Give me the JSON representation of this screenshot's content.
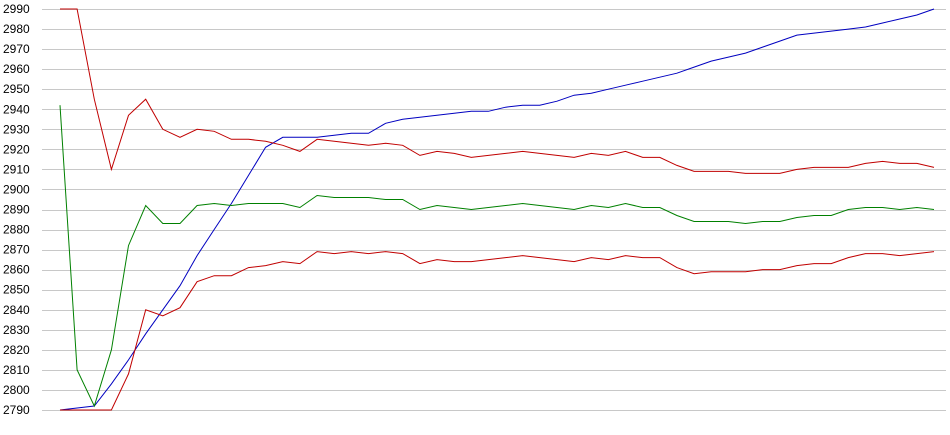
{
  "chart_data": {
    "type": "line",
    "title": "",
    "xlabel": "",
    "ylabel": "",
    "ylim": [
      2790,
      2990
    ],
    "yticks": [
      2790,
      2800,
      2810,
      2820,
      2830,
      2840,
      2850,
      2860,
      2870,
      2880,
      2890,
      2900,
      2910,
      2920,
      2930,
      2940,
      2950,
      2960,
      2970,
      2980,
      2990
    ],
    "x_count": 52,
    "grid": "horizontal",
    "legend": "none",
    "colors": {
      "grid": "#c8c8c8",
      "blue": "#0000c0",
      "green": "#008000",
      "red": "#c00000"
    },
    "series": [
      {
        "color": "#0000c0",
        "values": [
          2790,
          2791,
          2792,
          2803,
          2815,
          2828,
          2840,
          2852,
          2867,
          2880,
          2893,
          2907,
          2921,
          2926,
          2926,
          2926,
          2927,
          2928,
          2928,
          2933,
          2935,
          2936,
          2937,
          2938,
          2939,
          2939,
          2941,
          2942,
          2942,
          2944,
          2947,
          2948,
          2950,
          2952,
          2954,
          2956,
          2958,
          2961,
          2964,
          2966,
          2968,
          2971,
          2974,
          2977,
          2978,
          2979,
          2980,
          2981,
          2983,
          2985,
          2987,
          2990
        ]
      },
      {
        "color": "#008000",
        "values": [
          2942,
          2810,
          2792,
          2820,
          2872,
          2892,
          2883,
          2883,
          2892,
          2893,
          2892,
          2893,
          2893,
          2893,
          2891,
          2897,
          2896,
          2896,
          2896,
          2895,
          2895,
          2890,
          2892,
          2891,
          2890,
          2891,
          2892,
          2893,
          2892,
          2891,
          2890,
          2892,
          2891,
          2893,
          2891,
          2891,
          2887,
          2884,
          2884,
          2884,
          2883,
          2884,
          2884,
          2886,
          2887,
          2887,
          2890,
          2891,
          2891,
          2890,
          2891,
          2890
        ]
      },
      {
        "color": "#c00000",
        "values": [
          2990,
          2990,
          2945,
          2910,
          2937,
          2945,
          2930,
          2926,
          2930,
          2929,
          2925,
          2925,
          2924,
          2922,
          2919,
          2925,
          2924,
          2923,
          2922,
          2923,
          2922,
          2917,
          2919,
          2918,
          2916,
          2917,
          2918,
          2919,
          2918,
          2917,
          2916,
          2918,
          2917,
          2919,
          2916,
          2916,
          2912,
          2909,
          2909,
          2909,
          2908,
          2908,
          2908,
          2910,
          2911,
          2911,
          2911,
          2913,
          2914,
          2913,
          2913,
          2911
        ]
      },
      {
        "color": "#c00000",
        "values": [
          2790,
          2790,
          2790,
          2790,
          2808,
          2840,
          2837,
          2841,
          2854,
          2857,
          2857,
          2861,
          2862,
          2864,
          2863,
          2869,
          2868,
          2869,
          2868,
          2869,
          2868,
          2863,
          2865,
          2864,
          2864,
          2865,
          2866,
          2867,
          2866,
          2865,
          2864,
          2866,
          2865,
          2867,
          2866,
          2866,
          2861,
          2858,
          2859,
          2859,
          2859,
          2860,
          2860,
          2862,
          2863,
          2863,
          2866,
          2868,
          2868,
          2867,
          2868,
          2869
        ]
      }
    ]
  }
}
